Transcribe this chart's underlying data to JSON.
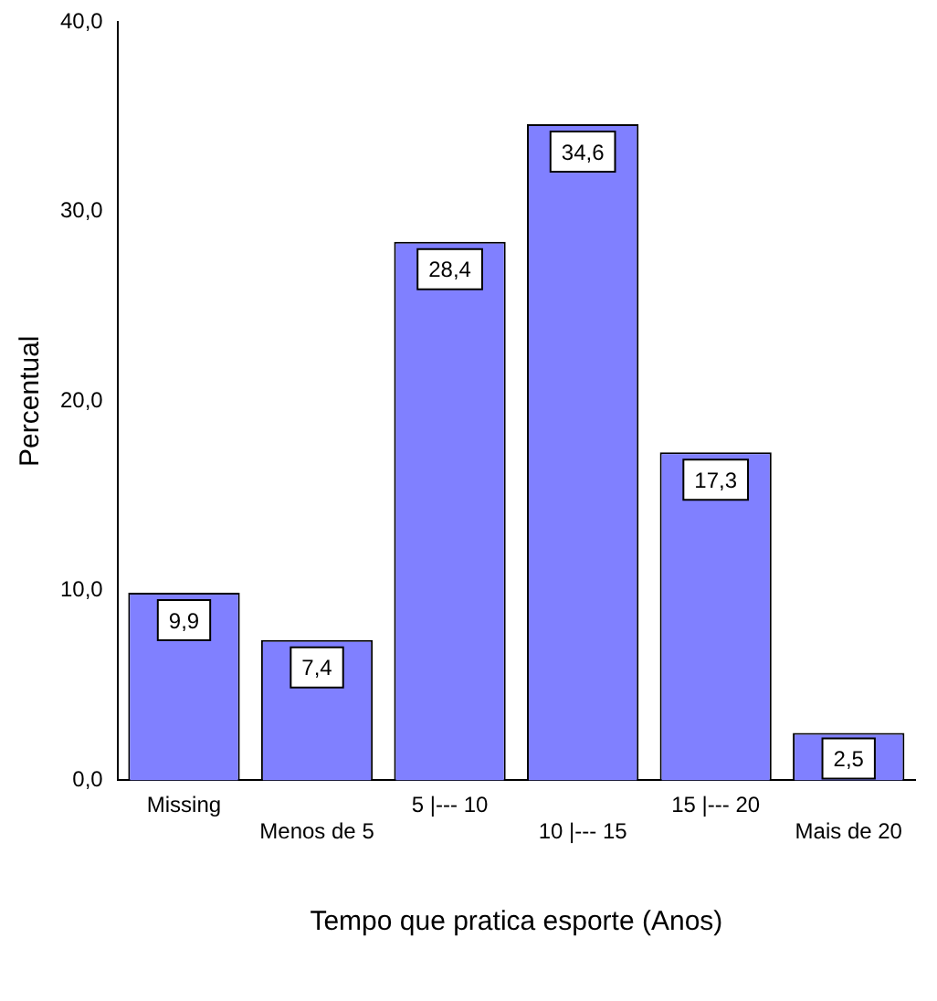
{
  "chart_data": {
    "type": "bar",
    "xlabel": "Tempo que pratica esporte (Anos)",
    "ylabel": "Percentual",
    "categories": [
      "Missing",
      "Menos de 5",
      "5 |--- 10",
      "10 |--- 15",
      "15 |--- 20",
      "Mais de 20"
    ],
    "values": [
      9.9,
      7.4,
      28.4,
      34.6,
      17.3,
      2.5
    ],
    "value_labels": [
      "9,9",
      "7,4",
      "28,4",
      "34,6",
      "17,3",
      "2,5"
    ],
    "color": "#8080ff",
    "ylim": [
      0,
      40
    ],
    "yticks": [
      {
        "value": 0,
        "label": "0,0"
      },
      {
        "value": 10,
        "label": "10,0"
      },
      {
        "value": 20,
        "label": "20,0"
      },
      {
        "value": 30,
        "label": "30,0"
      },
      {
        "value": 40,
        "label": "40,0"
      }
    ],
    "grid": false,
    "legend": false
  }
}
